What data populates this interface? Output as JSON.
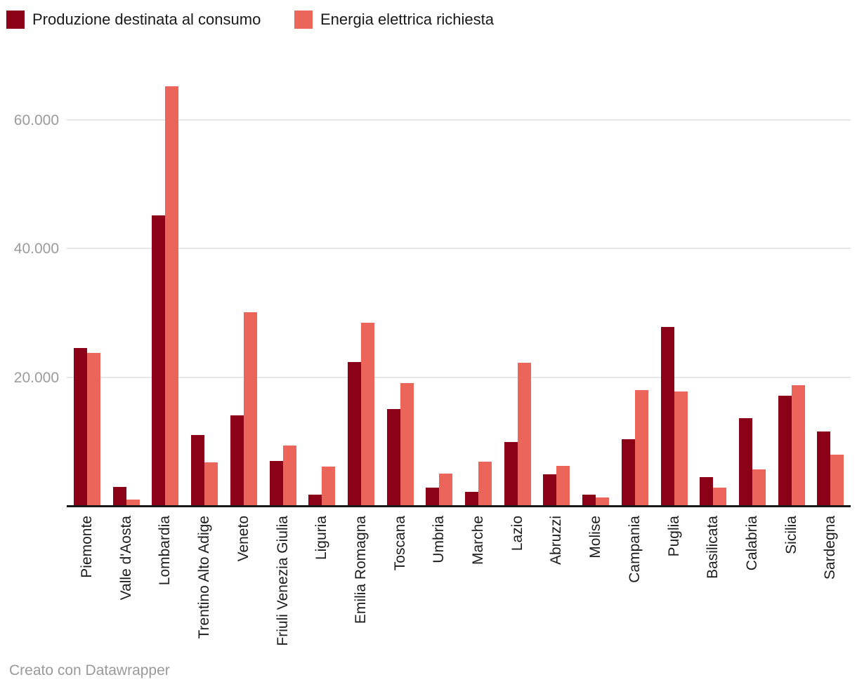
{
  "legend": {
    "items": [
      {
        "label": "Produzione destinata al consumo",
        "color": "#8b0118"
      },
      {
        "label": "Energia elettrica richiesta",
        "color": "#ec655a"
      }
    ]
  },
  "footer": {
    "credit": "Creato con Datawrapper"
  },
  "chart_data": {
    "type": "bar",
    "grouped": true,
    "title": "",
    "xlabel": "",
    "ylabel": "",
    "legend_position": "top-left",
    "grid": "horizontal",
    "ylim": [
      0,
      66000
    ],
    "yticks": [
      20000,
      40000,
      60000
    ],
    "ytick_labels": [
      "20.000",
      "40.000",
      "60.000"
    ],
    "categories": [
      "Piemonte",
      "Valle d'Aosta",
      "Lombardia",
      "Trentino Alto Adige",
      "Veneto",
      "Friuli Venezia Giulia",
      "Liguria",
      "Emilia Romagna",
      "Toscana",
      "Umbria",
      "Marche",
      "Lazio",
      "Abruzzi",
      "Molise",
      "Campania",
      "Puglia",
      "Basilicata",
      "Calabria",
      "Sicilia",
      "Sardegna"
    ],
    "series": [
      {
        "name": "Produzione destinata al consumo",
        "color": "#8b0118",
        "values": [
          24600,
          3100,
          45200,
          11100,
          14200,
          7100,
          1800,
          22400,
          15100,
          2900,
          2300,
          10000,
          5000,
          1900,
          10500,
          27900,
          4600,
          13700,
          17200,
          11600
        ]
      },
      {
        "name": "Energia elettrica richiesta",
        "color": "#ec655a",
        "values": [
          23800,
          1100,
          65200,
          6900,
          30100,
          9500,
          6200,
          28500,
          19200,
          5100,
          7000,
          22300,
          6300,
          1400,
          18100,
          17800,
          2900,
          5800,
          18800,
          8100
        ]
      }
    ]
  }
}
